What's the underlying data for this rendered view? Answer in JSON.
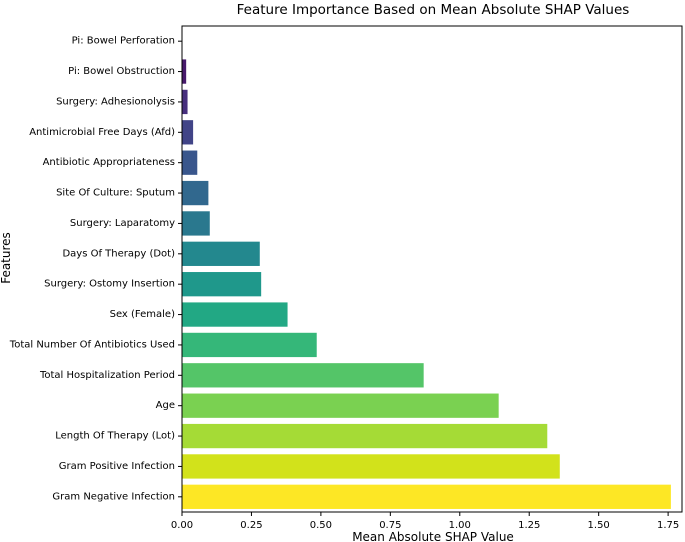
{
  "chart_data": {
    "type": "bar",
    "orientation": "horizontal",
    "title": "Feature Importance Based on Mean Absolute SHAP Values",
    "xlabel": "Mean Absolute SHAP Value",
    "ylabel": "Features",
    "xlim": [
      0,
      1.8
    ],
    "xticks": [
      0.0,
      0.25,
      0.5,
      0.75,
      1.0,
      1.25,
      1.5,
      1.75
    ],
    "xtick_labels": [
      "0.00",
      "0.25",
      "0.50",
      "0.75",
      "1.00",
      "1.25",
      "1.50",
      "1.75"
    ],
    "grid": false,
    "legend": "none",
    "categories": [
      "Pi: Bowel Perforation",
      "Pi: Bowel Obstruction",
      "Surgery: Adhesionolysis",
      "Antimicrobial Free Days (Afd)",
      "Antibiotic Appropriateness",
      "Site Of Culture: Sputum",
      "Surgery: Laparatomy",
      "Days Of Therapy (Dot)",
      "Surgery: Ostomy Insertion",
      "Sex (Female)",
      "Total Number Of Antibiotics Used",
      "Total Hospitalization Period",
      "Age",
      "Length Of Therapy (Lot)",
      "Gram Positive Infection",
      "Gram Negative Infection"
    ],
    "values": [
      0.0,
      0.015,
      0.02,
      0.04,
      0.055,
      0.095,
      0.1,
      0.28,
      0.285,
      0.38,
      0.485,
      0.87,
      1.14,
      1.315,
      1.36,
      1.76
    ],
    "colors": [
      "#440154",
      "#481a6c",
      "#472f7d",
      "#414487",
      "#39568c",
      "#31688e",
      "#2a788e",
      "#23888e",
      "#1f988b",
      "#22a884",
      "#35b779",
      "#54c568",
      "#7ad151",
      "#a5db36",
      "#d2e21b",
      "#fde725"
    ]
  }
}
